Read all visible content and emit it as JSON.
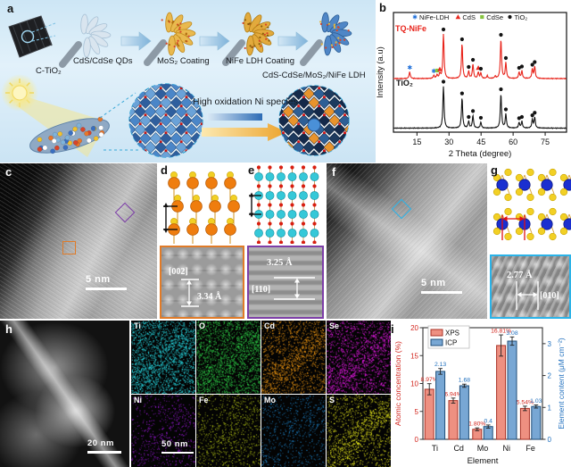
{
  "panels": {
    "a": "a",
    "b": "b",
    "c": "c",
    "d": "d",
    "e": "e",
    "f": "f",
    "g": "g",
    "h": "h",
    "i": "i"
  },
  "panel_a": {
    "start_material": "C-TiO₂",
    "step1": "CdS/CdSe QDs",
    "step2": "MoS₂ Coating",
    "step3": "NiFe LDH Coating",
    "product": "CdS-CdSe/MoS₂/NiFe LDH",
    "annotation": "High oxidation Ni species"
  },
  "panel_b": {
    "curve1_label": "TQ-NiFe",
    "curve2_label": "TiO₂"
  },
  "panel_c": {
    "scale_bar": "5 nm"
  },
  "panel_d": {
    "plane": "[002]",
    "spacing": "3.34 Å"
  },
  "panel_e": {
    "plane": "[110]",
    "spacing": "3.25 Å"
  },
  "panel_f": {
    "scale_bar": "5 nm"
  },
  "panel_g": {
    "plane": "[010]",
    "spacing": "2.77 Å"
  },
  "panel_h": {
    "scale_bar": "20 nm",
    "eds_scale_bar": "50 nm",
    "elements": [
      {
        "symbol": "Ti",
        "color": "#27d2db"
      },
      {
        "symbol": "O",
        "color": "#2ecc47"
      },
      {
        "symbol": "Cd",
        "color": "#e89312"
      },
      {
        "symbol": "Se",
        "color": "#e31ae3"
      },
      {
        "symbol": "Ni",
        "color": "#9a1ad8"
      },
      {
        "symbol": "Fe",
        "color": "#a9b916"
      },
      {
        "symbol": "Mo",
        "color": "#1d7fc2"
      },
      {
        "symbol": "S",
        "color": "#dcdd1b"
      }
    ]
  },
  "chart_data": [
    {
      "id": "xrd",
      "type": "line",
      "title": "",
      "xlabel": "2 Theta (degree)",
      "ylabel": "Intensity (a.u)",
      "xlim": [
        4,
        85
      ],
      "xticks": [
        15,
        30,
        45,
        60,
        75
      ],
      "grid": false,
      "legend_position": "top-inside",
      "legend": [
        {
          "label": "NiFe-LDH",
          "marker": "star",
          "color": "#1e6fd9"
        },
        {
          "label": "CdS",
          "marker": "triangle",
          "color": "#e8291f"
        },
        {
          "label": "CdSe",
          "marker": "square",
          "color": "#86c440"
        },
        {
          "label": "TiO₂",
          "marker": "circle",
          "color": "#141414"
        }
      ],
      "series": [
        {
          "name": "TQ-NiFe",
          "color": "#e8231a",
          "peaks": [
            {
              "x": 11.6,
              "h": 0.15,
              "marker": "star"
            },
            {
              "x": 22.9,
              "h": 0.07,
              "marker": "star"
            },
            {
              "x": 24.4,
              "h": 0.08,
              "marker": "square"
            },
            {
              "x": 25.7,
              "h": 0.11,
              "marker": "triangle"
            },
            {
              "x": 27.4,
              "h": 1.0,
              "marker": "circle"
            },
            {
              "x": 36.1,
              "h": 0.78,
              "marker": "circle"
            },
            {
              "x": 39.2,
              "h": 0.16,
              "marker": "circle"
            },
            {
              "x": 41.2,
              "h": 0.32,
              "marker": "circle"
            },
            {
              "x": 43.7,
              "h": 0.14,
              "marker": "triangle"
            },
            {
              "x": 44.9,
              "h": 0.12,
              "marker": "circle"
            },
            {
              "x": 47.9,
              "h": 0.06,
              "marker": null
            },
            {
              "x": 51.6,
              "h": 0.05,
              "marker": null
            },
            {
              "x": 54.3,
              "h": 0.88,
              "marker": "circle"
            },
            {
              "x": 56.6,
              "h": 0.36,
              "marker": "circle"
            },
            {
              "x": 62.8,
              "h": 0.14,
              "marker": "circle"
            },
            {
              "x": 64.1,
              "h": 0.17,
              "marker": "circle"
            },
            {
              "x": 69.0,
              "h": 0.21,
              "marker": "circle"
            },
            {
              "x": 70.1,
              "h": 0.27,
              "marker": "circle"
            }
          ]
        },
        {
          "name": "TiO₂",
          "color": "#141414",
          "peaks": [
            {
              "x": 27.4,
              "h": 1.0,
              "marker": "circle"
            },
            {
              "x": 36.1,
              "h": 0.72,
              "marker": "circle"
            },
            {
              "x": 39.2,
              "h": 0.16,
              "marker": "circle"
            },
            {
              "x": 41.2,
              "h": 0.3,
              "marker": "circle"
            },
            {
              "x": 44.9,
              "h": 0.14,
              "marker": "circle"
            },
            {
              "x": 54.3,
              "h": 0.82,
              "marker": "circle"
            },
            {
              "x": 56.6,
              "h": 0.34,
              "marker": "circle"
            },
            {
              "x": 62.8,
              "h": 0.13,
              "marker": "circle"
            },
            {
              "x": 64.1,
              "h": 0.16,
              "marker": "circle"
            },
            {
              "x": 69.0,
              "h": 0.2,
              "marker": "circle"
            },
            {
              "x": 70.1,
              "h": 0.26,
              "marker": "circle"
            }
          ]
        }
      ]
    },
    {
      "id": "composition",
      "type": "bar",
      "categories": [
        "Ti",
        "Cd",
        "Mo",
        "Ni",
        "Fe"
      ],
      "xlabel": "Element",
      "ylabel_left": "Atomic concentration (%)",
      "ylabel_right": "Element content (μM cm⁻²)",
      "ylim_left": [
        0,
        20
      ],
      "yticks_left": [
        0,
        5,
        10,
        15,
        20
      ],
      "ylim_right": [
        0,
        3.5
      ],
      "yticks_right": [
        0,
        1,
        2,
        3
      ],
      "axis_color_left": "#d2241c",
      "axis_color_right": "#1f6fbe",
      "legend_position": "top-left-inside",
      "series": [
        {
          "name": "XPS",
          "axis": "left",
          "fill": "#ee9081",
          "edge": "#a93226",
          "values": [
            8.97,
            6.94,
            1.8,
            16.81,
            5.54
          ],
          "value_labels": [
            "8.97%",
            "6.94%",
            "1.80%",
            "16.81%",
            "5.54%"
          ],
          "errors": [
            1.0,
            0.45,
            0.25,
            1.9,
            0.4
          ]
        },
        {
          "name": "ICP",
          "axis": "right",
          "fill": "#78a7d4",
          "edge": "#1f4e79",
          "values": [
            2.13,
            1.68,
            0.4,
            3.08,
            1.03
          ],
          "value_labels": [
            "2.13",
            "1.68",
            "0.4",
            "3.08",
            "1.03"
          ],
          "errors": [
            0.09,
            0.05,
            0.05,
            0.13,
            0.05
          ]
        }
      ]
    }
  ]
}
